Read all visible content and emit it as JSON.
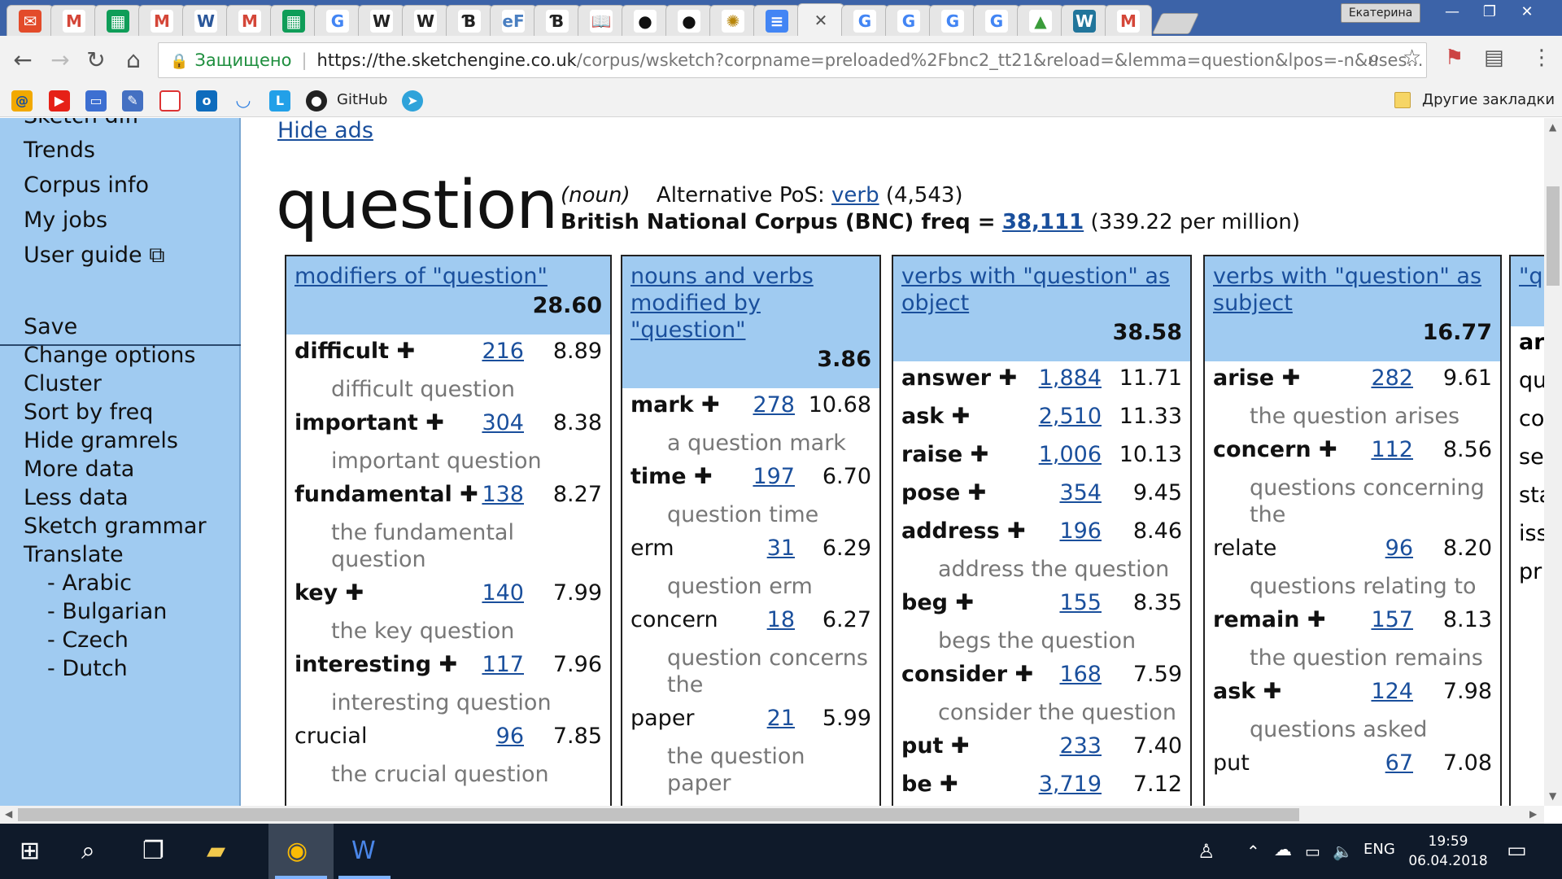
{
  "browser": {
    "profile_name": "Екатерина",
    "tabs": [
      {
        "icon": "mail-icon",
        "glyph": "✉",
        "bg": "#e34b2a",
        "fg": "#fff"
      },
      {
        "icon": "gmail-icon",
        "glyph": "M",
        "bg": "#fff",
        "fg": "#d44638"
      },
      {
        "icon": "sheets-icon",
        "glyph": "▦",
        "bg": "#0f9d58",
        "fg": "#fff"
      },
      {
        "icon": "gmail-icon",
        "glyph": "M",
        "bg": "#fff",
        "fg": "#d44638"
      },
      {
        "icon": "word-icon",
        "glyph": "W",
        "bg": "#fff",
        "fg": "#2b579a"
      },
      {
        "icon": "gmail-icon",
        "glyph": "M",
        "bg": "#fff",
        "fg": "#d44638"
      },
      {
        "icon": "sheets-icon",
        "glyph": "▦",
        "bg": "#0f9d58",
        "fg": "#fff"
      },
      {
        "icon": "google-icon",
        "glyph": "G",
        "bg": "#fff",
        "fg": "#4285f4"
      },
      {
        "icon": "wikipedia-icon",
        "glyph": "W",
        "bg": "#fff",
        "fg": "#222"
      },
      {
        "icon": "wikipedia-icon",
        "glyph": "W",
        "bg": "#fff",
        "fg": "#222"
      },
      {
        "icon": "site-icon",
        "glyph": "Ɓ",
        "bg": "#fff",
        "fg": "#222"
      },
      {
        "icon": "ef-icon",
        "glyph": "eF",
        "bg": "#fff",
        "fg": "#4a7fc1"
      },
      {
        "icon": "site-icon",
        "glyph": "Ɓ",
        "bg": "#fff",
        "fg": "#222"
      },
      {
        "icon": "book-icon",
        "glyph": "📖",
        "bg": "#fff",
        "fg": "#222"
      },
      {
        "icon": "github-icon",
        "glyph": "●",
        "bg": "#fff",
        "fg": "#111"
      },
      {
        "icon": "github-icon",
        "glyph": "●",
        "bg": "#fff",
        "fg": "#111"
      },
      {
        "icon": "emblem-icon",
        "glyph": "✺",
        "bg": "#fff",
        "fg": "#b8860b"
      },
      {
        "icon": "docs-icon",
        "glyph": "≡",
        "bg": "#4285f4",
        "fg": "#fff"
      },
      {
        "icon": "close-icon",
        "glyph": "✕",
        "bg": "transparent",
        "fg": "#555"
      },
      {
        "icon": "google-icon",
        "glyph": "G",
        "bg": "#fff",
        "fg": "#4285f4"
      },
      {
        "icon": "google-icon",
        "glyph": "G",
        "bg": "#fff",
        "fg": "#4285f4"
      },
      {
        "icon": "google-icon",
        "glyph": "G",
        "bg": "#fff",
        "fg": "#4285f4"
      },
      {
        "icon": "google-icon",
        "glyph": "G",
        "bg": "#fff",
        "fg": "#4285f4"
      },
      {
        "icon": "image-icon",
        "glyph": "▲",
        "bg": "#fff",
        "fg": "#3a9c3a"
      },
      {
        "icon": "wordpress-icon",
        "glyph": "W",
        "bg": "#21759b",
        "fg": "#fff"
      },
      {
        "icon": "gmail-icon",
        "glyph": "M",
        "bg": "#fff",
        "fg": "#d44638"
      }
    ],
    "address": {
      "secure_label": "Защищено",
      "host": "https://the.sketchengine.co.uk",
      "path": "/corpus/wsketch?corpname=preloaded%2Fbnc2_tt21&reload=&lemma=question&lpos=-n&uses..."
    },
    "bookmarks": {
      "github_label": "GitHub",
      "other_label": "Другие закладки"
    }
  },
  "sidebar": {
    "top_items": [
      "Sketch diff",
      "Trends",
      "Corpus info",
      "My jobs",
      "User guide"
    ],
    "bottom_items": [
      "Save",
      "Change options",
      "Cluster",
      "Sort by freq",
      "Hide gramrels",
      "More data",
      "Less data",
      "Sketch grammar",
      "Translate"
    ],
    "translate_sub": [
      "- Arabic",
      "- Bulgarian",
      "- Czech",
      "- Dutch"
    ]
  },
  "header": {
    "hide_ads": "Hide ads",
    "headword": "question",
    "pos": "(noun)",
    "alt_pos_label": "Alternative PoS:",
    "alt_pos_link": "verb",
    "alt_pos_count": "(4,543)",
    "corpus_label": "British National Corpus (BNC) freq =",
    "freq": "38,111",
    "per_million": "(339.22 per million)"
  },
  "columns": [
    {
      "title": "modifiers of \"question\"",
      "score": "28.60",
      "rows": [
        {
          "word": "difficult",
          "plus": true,
          "freq": "216",
          "score": "8.89",
          "example": "difficult question"
        },
        {
          "word": "important",
          "plus": true,
          "freq": "304",
          "score": "8.38",
          "example": "important question"
        },
        {
          "word": "fundamental",
          "plus": true,
          "freq": "138",
          "score": "8.27",
          "example": "the fundamental question"
        },
        {
          "word": "key",
          "plus": true,
          "freq": "140",
          "score": "7.99",
          "example": "the key question"
        },
        {
          "word": "interesting",
          "plus": true,
          "freq": "117",
          "score": "7.96",
          "example": "interesting question"
        },
        {
          "word": "crucial",
          "plus": false,
          "freq": "96",
          "score": "7.85",
          "example": "the crucial question"
        }
      ]
    },
    {
      "title": "nouns and verbs modified by \"question\"",
      "score": "3.86",
      "rows": [
        {
          "word": "mark",
          "plus": true,
          "freq": "278",
          "score": "10.68",
          "example": "a question mark"
        },
        {
          "word": "time",
          "plus": true,
          "freq": "197",
          "score": "6.70",
          "example": "question time"
        },
        {
          "word": "erm",
          "plus": false,
          "freq": "31",
          "score": "6.29",
          "example": "question erm"
        },
        {
          "word": "concern",
          "plus": false,
          "freq": "18",
          "score": "6.27",
          "example": "question concerns the"
        },
        {
          "word": "paper",
          "plus": false,
          "freq": "21",
          "score": "5.99",
          "example": "the question paper"
        }
      ]
    },
    {
      "title": "verbs with \"question\" as object",
      "score": "38.58",
      "rows": [
        {
          "word": "answer",
          "plus": true,
          "freq": "1,884",
          "score": "11.71",
          "example": ""
        },
        {
          "word": "ask",
          "plus": true,
          "freq": "2,510",
          "score": "11.33",
          "example": ""
        },
        {
          "word": "raise",
          "plus": true,
          "freq": "1,006",
          "score": "10.13",
          "example": ""
        },
        {
          "word": "pose",
          "plus": true,
          "freq": "354",
          "score": "9.45",
          "example": ""
        },
        {
          "word": "address",
          "plus": true,
          "freq": "196",
          "score": "8.46",
          "example": "address the question"
        },
        {
          "word": "beg",
          "plus": true,
          "freq": "155",
          "score": "8.35",
          "example": "begs the question"
        },
        {
          "word": "consider",
          "plus": true,
          "freq": "168",
          "score": "7.59",
          "example": "consider the question"
        },
        {
          "word": "put",
          "plus": true,
          "freq": "233",
          "score": "7.40",
          "example": ""
        },
        {
          "word": "be",
          "plus": true,
          "freq": "3,719",
          "score": "7.12",
          "example": ""
        }
      ]
    },
    {
      "title": "verbs with \"question\" as subject",
      "score": "16.77",
      "rows": [
        {
          "word": "arise",
          "plus": true,
          "freq": "282",
          "score": "9.61",
          "example": "the question arises"
        },
        {
          "word": "concern",
          "plus": true,
          "freq": "112",
          "score": "8.56",
          "example": "questions concerning the"
        },
        {
          "word": "relate",
          "plus": false,
          "freq": "96",
          "score": "8.20",
          "example": "questions relating to"
        },
        {
          "word": "remain",
          "plus": true,
          "freq": "157",
          "score": "8.13",
          "example": "the question remains"
        },
        {
          "word": "ask",
          "plus": true,
          "freq": "124",
          "score": "7.98",
          "example": "questions asked"
        },
        {
          "word": "put",
          "plus": false,
          "freq": "67",
          "score": "7.08",
          "example": ""
        }
      ]
    }
  ],
  "partial_column": {
    "title": "\"q",
    "words": [
      "ar",
      "qu",
      "co",
      "se",
      "sta",
      "iss",
      "pr"
    ]
  },
  "taskbar": {
    "lang": "ENG",
    "time": "19:59",
    "date": "06.04.2018"
  }
}
